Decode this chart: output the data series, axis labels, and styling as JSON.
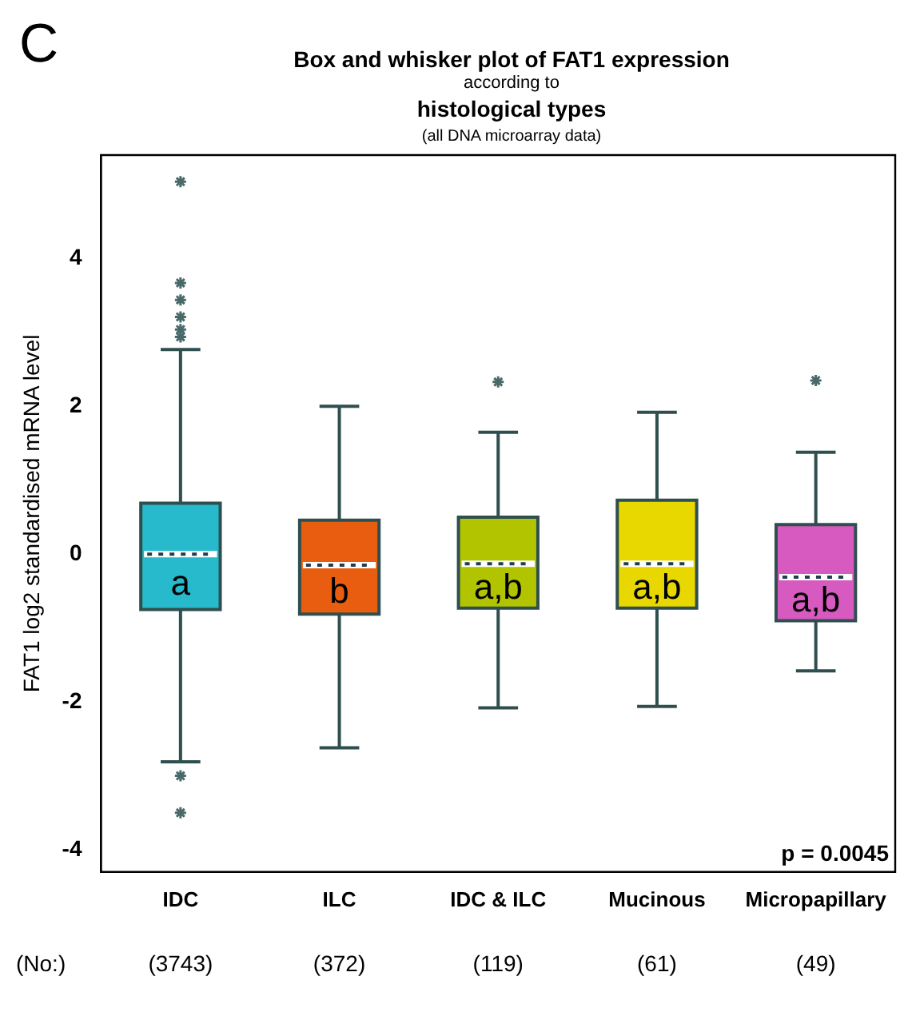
{
  "chart_data": {
    "type": "box",
    "title": "Box and whisker plot of FAT1 expression",
    "subtitle": "according to",
    "ylabel": "FAT1 log2 standardised mRNA level",
    "categories": [
      "IDC",
      "ILC",
      "IDC & ILC",
      "Mucinous",
      "Micropapillary"
    ],
    "colors": [
      "#27b9cc",
      "#e85d10",
      "#b2c400",
      "#e8d800",
      "#d65ac0"
    ],
    "boxes": [
      {
        "low": -2.81,
        "q1": -0.75,
        "median": 0.0,
        "q3": 0.69,
        "high": 2.77,
        "outliers": [
          5.04,
          3.67,
          3.44,
          3.21,
          3.04,
          2.94,
          -3.0,
          -3.5
        ]
      },
      {
        "low": -2.62,
        "q1": -0.81,
        "median": -0.15,
        "q3": 0.46,
        "high": 2.0
      },
      {
        "low": -2.08,
        "q1": -0.73,
        "median": -0.13,
        "q3": 0.5,
        "high": 1.65,
        "outliers": [
          2.33
        ]
      },
      {
        "low": -2.06,
        "q1": -0.73,
        "median": -0.13,
        "q3": 0.73,
        "high": 1.92
      },
      {
        "low": -1.58,
        "q1": -0.9,
        "median": -0.31,
        "q3": 0.4,
        "high": 1.38,
        "outliers": [
          2.35
        ]
      }
    ],
    "ylim": [
      -4.3,
      5.4
    ],
    "yticks": [
      -4,
      -2,
      0,
      2,
      4
    ],
    "grid": false,
    "legend": false,
    "marker": "star",
    "annotations": [
      "histological types",
      "(all DNA microarray data)",
      "C",
      "p = 0.0045",
      "(No:)",
      "a",
      "b",
      "a,b",
      "a,b",
      "a,b",
      "(3743)",
      "(372)",
      "(119)",
      "(61)",
      "(49)"
    ]
  }
}
